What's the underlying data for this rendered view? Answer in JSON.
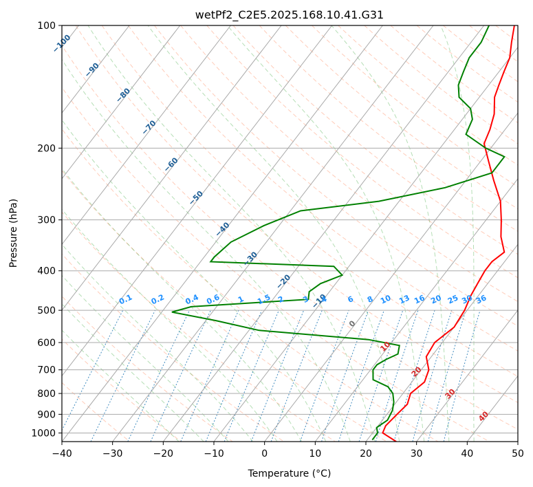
{
  "chart_data": {
    "type": "line",
    "title": "wetPf2_C2E5.2025.168.10.41.G31",
    "xlabel": "Temperature (°C)",
    "ylabel": "Pressure (hPa)",
    "xlim": [
      -40,
      50
    ],
    "ylim": [
      1050,
      100
    ],
    "y_scale": "log",
    "x_ticks": [
      "−40",
      "−30",
      "−20",
      "−10",
      "0",
      "10",
      "20",
      "30",
      "40",
      "50"
    ],
    "y_ticks": [
      "100",
      "200",
      "300",
      "400",
      "500",
      "600",
      "700",
      "800",
      "900",
      "1000"
    ],
    "isotherm_skew_per_decade": 62,
    "grid": true,
    "series": [
      {
        "color": "#ff0000",
        "points": [
          [
            26,
            1050
          ],
          [
            22,
            1000
          ],
          [
            21.5,
            960
          ],
          [
            22,
            900
          ],
          [
            22.5,
            850
          ],
          [
            21.5,
            800
          ],
          [
            22.5,
            750
          ],
          [
            21.5,
            700
          ],
          [
            19,
            650
          ],
          [
            18.5,
            600
          ],
          [
            20,
            550
          ],
          [
            19.5,
            500
          ],
          [
            18.5,
            460
          ],
          [
            18,
            430
          ],
          [
            17.5,
            400
          ],
          [
            17.5,
            380
          ],
          [
            18.5,
            360
          ],
          [
            15.5,
            330
          ],
          [
            13,
            300
          ],
          [
            10,
            270
          ],
          [
            5.5,
            240
          ],
          [
            1.5,
            215
          ],
          [
            -2,
            195
          ],
          [
            -3,
            180
          ],
          [
            -4.5,
            165
          ],
          [
            -7,
            150
          ],
          [
            -8,
            140
          ],
          [
            -9,
            130
          ],
          [
            -10,
            120
          ],
          [
            -12,
            110
          ],
          [
            -14,
            100
          ]
        ]
      },
      {
        "color": "#008000",
        "points": [
          [
            21,
            1040
          ],
          [
            21,
            1000
          ],
          [
            20,
            970
          ],
          [
            21,
            930
          ],
          [
            20.5,
            880
          ],
          [
            19.5,
            840
          ],
          [
            18,
            800
          ],
          [
            16,
            770
          ],
          [
            12,
            740
          ],
          [
            10.5,
            700
          ],
          [
            10.5,
            680
          ],
          [
            11.5,
            660
          ],
          [
            13,
            640
          ],
          [
            12,
            610
          ],
          [
            5,
            590
          ],
          [
            -18,
            560
          ],
          [
            -28,
            530
          ],
          [
            -38,
            505
          ],
          [
            -35,
            490
          ],
          [
            -13,
            470
          ],
          [
            -14,
            450
          ],
          [
            -13,
            430
          ],
          [
            -10,
            410
          ],
          [
            -13,
            390
          ],
          [
            -38,
            380
          ],
          [
            -38,
            370
          ],
          [
            -37,
            340
          ],
          [
            -33,
            310
          ],
          [
            -28,
            285
          ],
          [
            -14,
            270
          ],
          [
            -3,
            250
          ],
          [
            4,
            230
          ],
          [
            4,
            210
          ],
          [
            -1,
            200
          ],
          [
            -7,
            185
          ],
          [
            -8,
            170
          ],
          [
            -10,
            160
          ],
          [
            -14,
            150
          ],
          [
            -16,
            140
          ],
          [
            -17,
            130
          ],
          [
            -18,
            120
          ],
          [
            -18,
            110
          ],
          [
            -19,
            100
          ]
        ]
      }
    ],
    "dry_adiabat_labels": [
      "−100",
      "−90",
      "−80",
      "−70",
      "−60",
      "−50",
      "−40",
      "−30",
      "−20",
      "−10",
      "0",
      "10",
      "20",
      "30",
      "40"
    ],
    "mixing_ratio_labels": [
      "0.1",
      "0.2",
      "0.4",
      "0.6",
      "1",
      "1.5",
      "2",
      "3",
      "4",
      "6",
      "8",
      "10",
      "13",
      "16",
      "20",
      "25",
      "30",
      "36"
    ],
    "colors": {
      "temperature": "#ff0000",
      "dewpoint": "#008000",
      "isotherm": "#a9a9a9",
      "isobar": "#a9a9a9",
      "dry_adiabat": "#ff7f50",
      "moist_adiabat": "#2ca02c",
      "mixing_ratio": "#1f77b4",
      "mixing_label": "#1e90ff",
      "adiabat_label": "#1f5f96",
      "warm_label": "#d62728",
      "zero_label": "#707070",
      "curved_guide": "#d2b48c"
    }
  }
}
